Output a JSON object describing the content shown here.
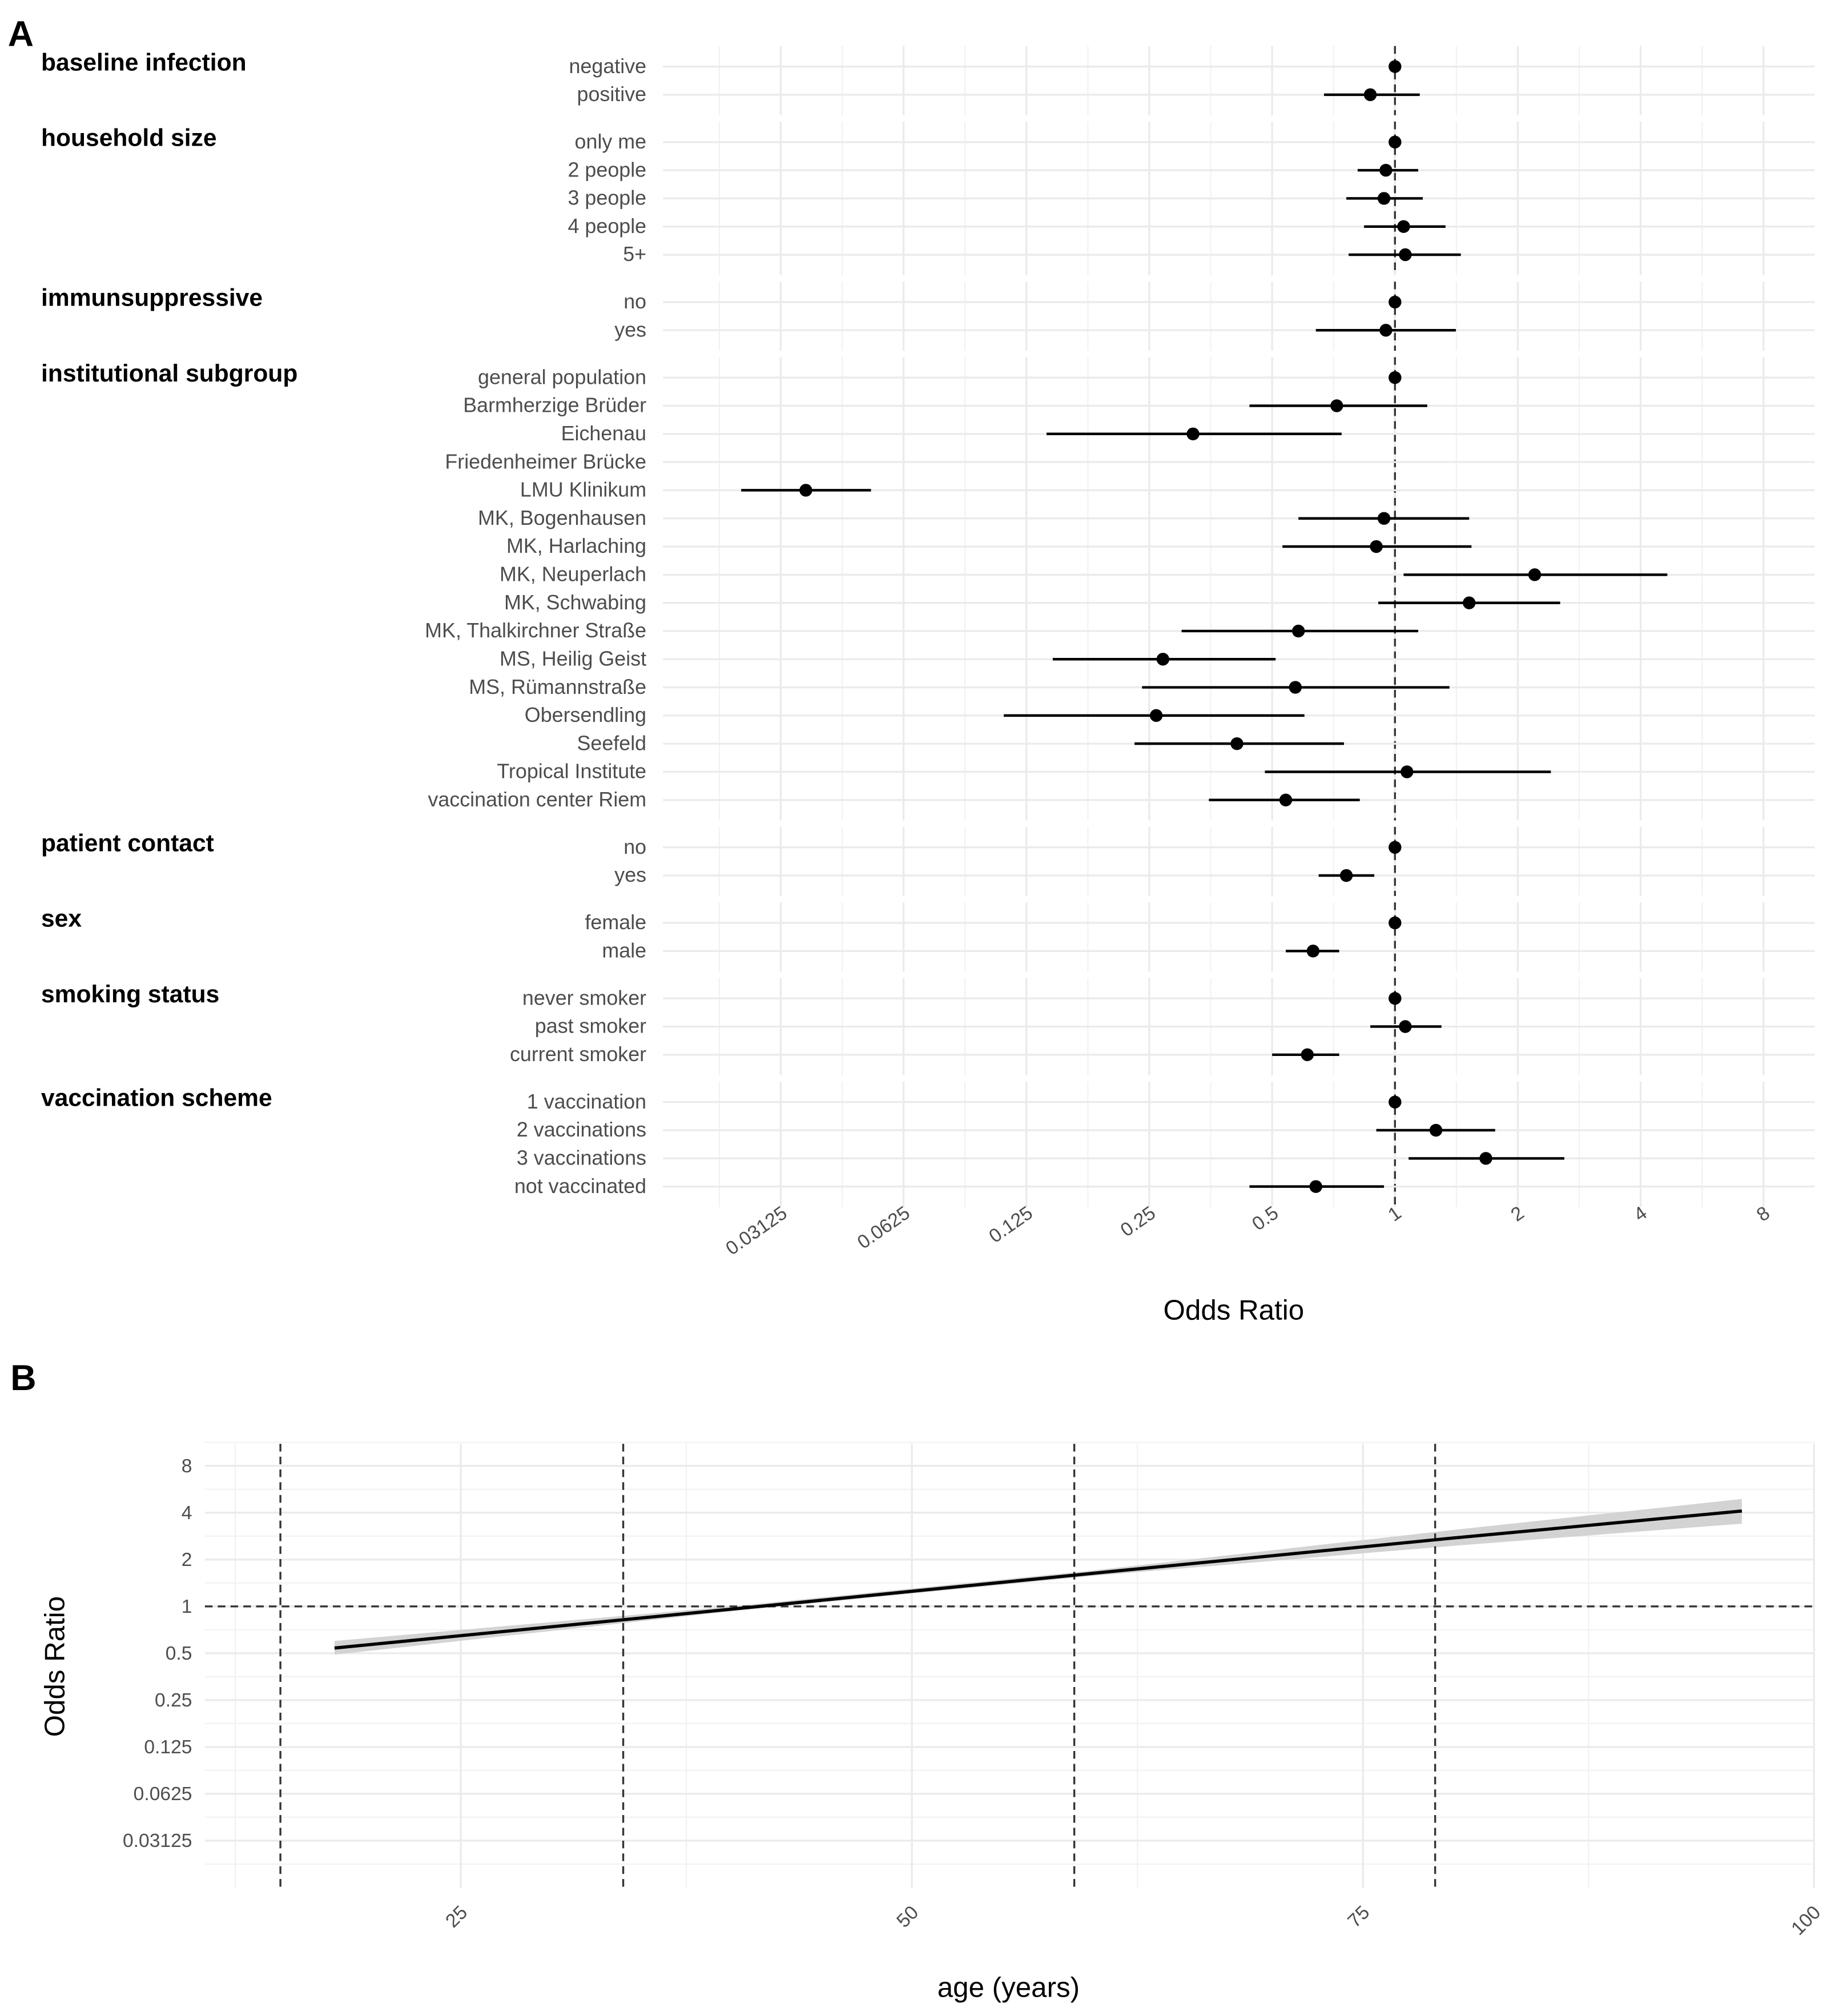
{
  "chart_data": [
    {
      "panel": "A",
      "type": "forest",
      "xlabel": "Odds Ratio",
      "xscale": "log2",
      "xlim": [
        0.02,
        11
      ],
      "xticks": [
        "0.03125",
        "0.0625",
        "0.125",
        "0.25",
        "0.5",
        "1",
        "2",
        "4",
        "8"
      ],
      "xtick_values": [
        0.03125,
        0.0625,
        0.125,
        0.25,
        0.5,
        1,
        2,
        4,
        8
      ],
      "reference_line": 1,
      "groups": [
        {
          "name": "baseline infection",
          "rows": [
            {
              "label": "negative",
              "or": 1,
              "lo": 1,
              "hi": 1
            },
            {
              "label": "positive",
              "or": 0.87,
              "lo": 0.67,
              "hi": 1.15
            }
          ]
        },
        {
          "name": "household size",
          "rows": [
            {
              "label": "only me",
              "or": 1,
              "lo": 1,
              "hi": 1
            },
            {
              "label": "2 people",
              "or": 0.95,
              "lo": 0.81,
              "hi": 1.14
            },
            {
              "label": "3 people",
              "or": 0.94,
              "lo": 0.76,
              "hi": 1.17
            },
            {
              "label": "4 people",
              "or": 1.05,
              "lo": 0.84,
              "hi": 1.33
            },
            {
              "label": "5+",
              "or": 1.06,
              "lo": 0.77,
              "hi": 1.45
            }
          ]
        },
        {
          "name": "immunsuppressive",
          "rows": [
            {
              "label": "no",
              "or": 1,
              "lo": 1,
              "hi": 1
            },
            {
              "label": "yes",
              "or": 0.95,
              "lo": 0.64,
              "hi": 1.41
            }
          ]
        },
        {
          "name": "institutional subgroup",
          "rows": [
            {
              "label": "general population",
              "or": 1,
              "lo": 1,
              "hi": 1
            },
            {
              "label": "Barmherzige Brüder",
              "or": 0.72,
              "lo": 0.44,
              "hi": 1.2
            },
            {
              "label": "Eichenau",
              "or": 0.32,
              "lo": 0.14,
              "hi": 0.74
            },
            {
              "label": "Friedenheimer Brücke",
              "or": null,
              "lo": null,
              "hi": null
            },
            {
              "label": "LMU Klinikum",
              "or": 0.036,
              "lo": 0.025,
              "hi": 0.052
            },
            {
              "label": "MK, Bogenhausen",
              "or": 0.94,
              "lo": 0.58,
              "hi": 1.52
            },
            {
              "label": "MK, Harlaching",
              "or": 0.9,
              "lo": 0.53,
              "hi": 1.54
            },
            {
              "label": "MK, Neuperlach",
              "or": 2.2,
              "lo": 1.05,
              "hi": 4.65
            },
            {
              "label": "MK, Schwabing",
              "or": 1.52,
              "lo": 0.91,
              "hi": 2.54
            },
            {
              "label": "MK, Thalkirchner Straße",
              "or": 0.58,
              "lo": 0.3,
              "hi": 1.14
            },
            {
              "label": "MS, Heilig Geist",
              "or": 0.27,
              "lo": 0.145,
              "hi": 0.51
            },
            {
              "label": "MS, Rümannstraße",
              "or": 0.57,
              "lo": 0.24,
              "hi": 1.36
            },
            {
              "label": "Obersendling",
              "or": 0.26,
              "lo": 0.11,
              "hi": 0.6
            },
            {
              "label": "Seefeld",
              "or": 0.41,
              "lo": 0.23,
              "hi": 0.75
            },
            {
              "label": "Tropical Institute",
              "or": 1.07,
              "lo": 0.48,
              "hi": 2.41
            },
            {
              "label": "vaccination center Riem",
              "or": 0.54,
              "lo": 0.35,
              "hi": 0.82
            }
          ]
        },
        {
          "name": "patient contact",
          "rows": [
            {
              "label": "no",
              "or": 1,
              "lo": 1,
              "hi": 1
            },
            {
              "label": "yes",
              "or": 0.76,
              "lo": 0.65,
              "hi": 0.89
            }
          ]
        },
        {
          "name": "sex",
          "rows": [
            {
              "label": "female",
              "or": 1,
              "lo": 1,
              "hi": 1
            },
            {
              "label": "male",
              "or": 0.63,
              "lo": 0.54,
              "hi": 0.73
            }
          ]
        },
        {
          "name": "smoking status",
          "rows": [
            {
              "label": "never smoker",
              "or": 1,
              "lo": 1,
              "hi": 1
            },
            {
              "label": "past smoker",
              "or": 1.06,
              "lo": 0.87,
              "hi": 1.3
            },
            {
              "label": "current smoker",
              "or": 0.61,
              "lo": 0.5,
              "hi": 0.73
            }
          ]
        },
        {
          "name": "vaccination scheme",
          "rows": [
            {
              "label": "1 vaccination",
              "or": 1,
              "lo": 1,
              "hi": 1
            },
            {
              "label": "2 vaccinations",
              "or": 1.26,
              "lo": 0.9,
              "hi": 1.76
            },
            {
              "label": "3 vaccinations",
              "or": 1.67,
              "lo": 1.08,
              "hi": 2.6
            },
            {
              "label": "not vaccinated",
              "or": 0.64,
              "lo": 0.44,
              "hi": 0.94
            }
          ]
        }
      ]
    },
    {
      "panel": "B",
      "type": "line",
      "xlabel": "age (years)",
      "ylabel": "Odds Ratio",
      "xlim": [
        11,
        100
      ],
      "xticks": [
        "25",
        "50",
        "75",
        "100"
      ],
      "xtick_values": [
        25,
        50,
        75,
        100
      ],
      "yscale": "log2",
      "ylim": [
        0.02,
        11
      ],
      "yticks": [
        "0.03125",
        "0.0625",
        "0.125",
        "0.25",
        "0.5",
        "1",
        "2",
        "4",
        "8"
      ],
      "ytick_values": [
        0.03125,
        0.0625,
        0.125,
        0.25,
        0.5,
        1,
        2,
        4,
        8
      ],
      "reference_line_y": 1,
      "reference_lines_x": [
        15,
        34,
        59,
        79
      ],
      "series": [
        {
          "name": "fit",
          "x": [
            18,
            40,
            60,
            80,
            96
          ],
          "y": [
            0.54,
            0.96,
            1.63,
            2.75,
            4.1
          ],
          "ci_lo": [
            0.49,
            0.93,
            1.57,
            2.45,
            3.4
          ],
          "ci_hi": [
            0.6,
            1.0,
            1.7,
            3.1,
            4.9
          ]
        }
      ]
    }
  ],
  "panel_labels": [
    "A",
    "B"
  ]
}
